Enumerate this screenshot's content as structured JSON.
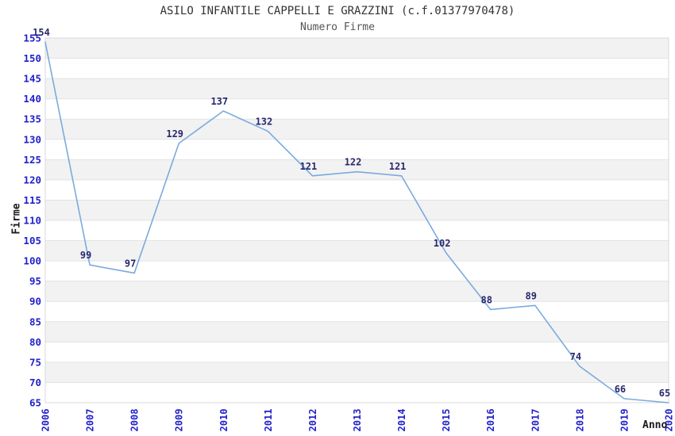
{
  "chart_data": {
    "type": "line",
    "title": "ASILO INFANTILE CAPPELLI E GRAZZINI (c.f.01377970478)",
    "subtitle": "Numero Firme",
    "xlabel": "Anno",
    "ylabel": "Firme",
    "categories": [
      "2006",
      "2007",
      "2008",
      "2009",
      "2010",
      "2011",
      "2012",
      "2013",
      "2014",
      "2015",
      "2016",
      "2017",
      "2018",
      "2019",
      "2020"
    ],
    "series": [
      {
        "name": "Numero Firme",
        "values": [
          154,
          99,
          97,
          129,
          137,
          132,
          121,
          122,
          121,
          102,
          88,
          89,
          74,
          66,
          65
        ]
      }
    ],
    "ylim": [
      65,
      155
    ],
    "ytick_step": 5,
    "y_ticks": [
      65,
      70,
      75,
      80,
      85,
      90,
      95,
      100,
      105,
      110,
      115,
      120,
      125,
      130,
      135,
      140,
      145,
      150,
      155
    ],
    "grid": "horizontal-bands-alternating",
    "legend": "none",
    "data_labels_shown": true,
    "colors": {
      "line": "#7AAADF",
      "tick_label": "#2222CC",
      "data_label": "#28286E",
      "band_gray": "#F2F2F2",
      "band_white": "#FFFFFF",
      "grid_line": "#E3E3E3",
      "plot_border": "#D8D8D8",
      "title": "#333333",
      "subtitle": "#555555",
      "axis_title": "#1A1A1A",
      "background": "#FFFFFF"
    }
  }
}
